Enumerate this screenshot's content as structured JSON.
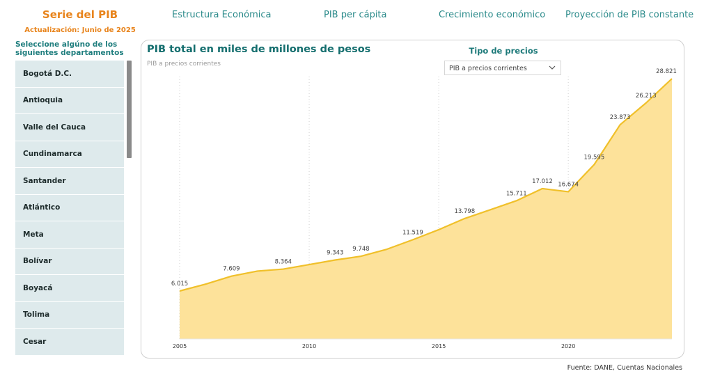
{
  "brand": {
    "title": "Serie del PIB",
    "update": "Actualización: Junio de 2025"
  },
  "nav": [
    {
      "label": "Estructura Económica"
    },
    {
      "label": "PIB per cápita"
    },
    {
      "label": "Crecimiento económico"
    },
    {
      "label": "Proyección de PIB constante"
    }
  ],
  "slicer": {
    "title": "Seleccione algúno de los siguientes departamentos",
    "items": [
      "Bogotá D.C.",
      "Antioquia",
      "Valle del Cauca",
      "Cundinamarca",
      "Santander",
      "Atlántico",
      "Meta",
      "Bolívar",
      "Boyacá",
      "Tolima",
      "Cesar"
    ]
  },
  "price_filter": {
    "label": "Tipo de precios",
    "value": "PIB a precios corrientes"
  },
  "source": "Fuente: DANE, Cuentas Nacionales",
  "colors": {
    "accent_orange": "#e8841c",
    "teal": "#146e6e",
    "line": "#f0c02a",
    "area": "#fde29a"
  },
  "chart_data": {
    "type": "area",
    "title": "PIB total en miles de millones de pesos",
    "subtitle": "PIB a precios corrientes",
    "x": [
      2005,
      2006,
      2007,
      2008,
      2009,
      2010,
      2011,
      2012,
      2013,
      2014,
      2015,
      2016,
      2017,
      2018,
      2019,
      2020,
      2021,
      2022,
      2023,
      2024
    ],
    "values": [
      6015,
      6750,
      7609,
      8150,
      8364,
      8850,
      9343,
      9748,
      10500,
      11519,
      12600,
      13798,
      14750,
      15711,
      17012,
      16674,
      19595,
      23873,
      26213,
      28821
    ],
    "labeled_years": [
      2005,
      2007,
      2009,
      2011,
      2012,
      2014,
      2016,
      2018,
      2019,
      2020,
      2021,
      2022,
      2023,
      2024
    ],
    "labels": {
      "2005": "6.015",
      "2007": "7.609",
      "2009": "8.364",
      "2011": "9.343",
      "2012": "9.748",
      "2014": "11.519",
      "2016": "13.798",
      "2018": "15.711",
      "2019": "17.012",
      "2020": "16.674",
      "2021": "19.595",
      "2022": "23.873",
      "2023": "26.213",
      "2024": "28.821"
    },
    "xticks": [
      2005,
      2010,
      2015,
      2020
    ],
    "xlabel": "",
    "ylabel": "",
    "grid": "vertical-dotted"
  }
}
